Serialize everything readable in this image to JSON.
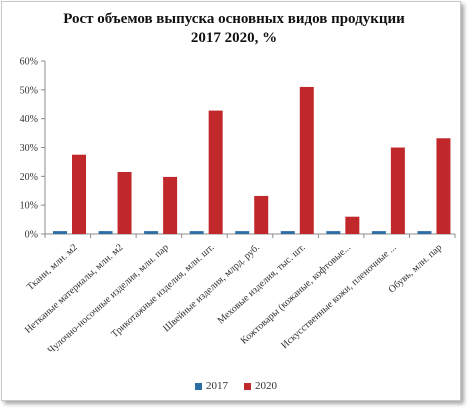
{
  "chart_data": {
    "type": "bar",
    "title_line1": "Рост объемов выпуска основных видов продукции",
    "title_line2": "2017 2020, %",
    "categories": [
      "Ткани, млн. м2",
      "Нетканые материалы, млн. м2",
      "Чулочно-носочные изделия, млн. пар",
      "Трикотажные изделия, млн. шт.",
      "Швейные изделия, млрд. руб.",
      "Меховые изделия, тыс. шт.",
      "Кожтовары (кожаные, кофтовые...",
      "Искусственные кожи, пленочные ...",
      "Обувь, млн. пар"
    ],
    "series": [
      {
        "name": "2017",
        "values": [
          1,
          1,
          1,
          1,
          1,
          1,
          1,
          1,
          1
        ],
        "color": "#2e6ea6"
      },
      {
        "name": "2020",
        "values": [
          27.5,
          21.5,
          19.8,
          42.8,
          13.2,
          51,
          6,
          30,
          33.2
        ],
        "color": "#c0282c"
      }
    ],
    "yticks": [
      "0%",
      "10%",
      "20%",
      "30%",
      "40%",
      "50%",
      "60%"
    ],
    "ylim": [
      0,
      60
    ],
    "grid": false,
    "legend_position": "bottom"
  }
}
